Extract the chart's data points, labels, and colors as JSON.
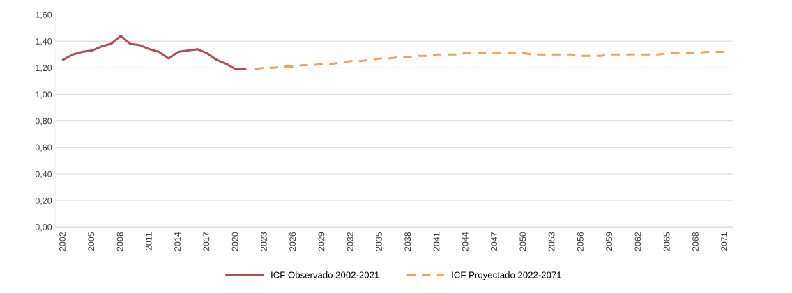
{
  "chart_data": {
    "type": "line",
    "categories": [
      "2002",
      null,
      null,
      "2005",
      null,
      null,
      "2008",
      null,
      null,
      "2011",
      null,
      null,
      "2014",
      null,
      null,
      "2017",
      null,
      null,
      "2020",
      null,
      null,
      "2023",
      null,
      null,
      "2026",
      null,
      null,
      "2029",
      null,
      null,
      "2032",
      null,
      null,
      "2035",
      null,
      null,
      "2038",
      null,
      null,
      "2041",
      null,
      null,
      "2044",
      null,
      null,
      "2047",
      null,
      null,
      "2050",
      null,
      null,
      "2053",
      null,
      null,
      "2056",
      null,
      null,
      "2059",
      null,
      null,
      "2062",
      null,
      null,
      "2065",
      null,
      null,
      "2068",
      null,
      null,
      "2071"
    ],
    "series": [
      {
        "name": "ICF Observado 2002-2021",
        "color": "#b94a52",
        "line_style": "solid",
        "values": [
          1.26,
          1.3,
          1.32,
          1.33,
          1.36,
          1.38,
          1.44,
          1.38,
          1.37,
          1.34,
          1.32,
          1.27,
          1.32,
          1.33,
          1.34,
          1.31,
          1.26,
          1.23,
          1.19,
          1.19,
          null,
          null,
          null,
          null,
          null,
          null,
          null,
          null,
          null,
          null,
          null,
          null,
          null,
          null,
          null,
          null,
          null,
          null,
          null,
          null,
          null,
          null,
          null,
          null,
          null,
          null,
          null,
          null,
          null,
          null,
          null,
          null,
          null,
          null,
          null,
          null,
          null,
          null,
          null,
          null,
          null,
          null,
          null,
          null,
          null,
          null,
          null,
          null,
          null,
          null
        ]
      },
      {
        "name": "ICF Proyectado 2022-2071",
        "color": "#f0a35e",
        "line_style": "dashed",
        "values": [
          null,
          null,
          null,
          null,
          null,
          null,
          null,
          null,
          null,
          null,
          null,
          null,
          null,
          null,
          null,
          null,
          null,
          null,
          null,
          null,
          1.19,
          1.2,
          1.2,
          1.21,
          1.21,
          1.22,
          1.22,
          1.23,
          1.23,
          1.24,
          1.25,
          1.25,
          1.26,
          1.27,
          1.27,
          1.28,
          1.28,
          1.29,
          1.29,
          1.3,
          1.3,
          1.3,
          1.31,
          1.31,
          1.31,
          1.31,
          1.31,
          1.31,
          1.31,
          1.3,
          1.3,
          1.3,
          1.3,
          1.3,
          1.29,
          1.29,
          1.29,
          1.3,
          1.3,
          1.3,
          1.3,
          1.3,
          1.3,
          1.31,
          1.31,
          1.31,
          1.31,
          1.32,
          1.32,
          1.32
        ]
      }
    ],
    "ylim": [
      0,
      1.6
    ],
    "yticks": [
      {
        "value": 0,
        "label": "0,00"
      },
      {
        "value": 0.2,
        "label": "0,20"
      },
      {
        "value": 0.4,
        "label": "0,40"
      },
      {
        "value": 0.6,
        "label": "0,60"
      },
      {
        "value": 0.8,
        "label": "0,80"
      },
      {
        "value": 1.0,
        "label": "1,00"
      },
      {
        "value": 1.2,
        "label": "1,20"
      },
      {
        "value": 1.4,
        "label": "1,40"
      },
      {
        "value": 1.6,
        "label": "1,60"
      }
    ],
    "grid": "y",
    "legend": "bottom",
    "marker": "none"
  }
}
